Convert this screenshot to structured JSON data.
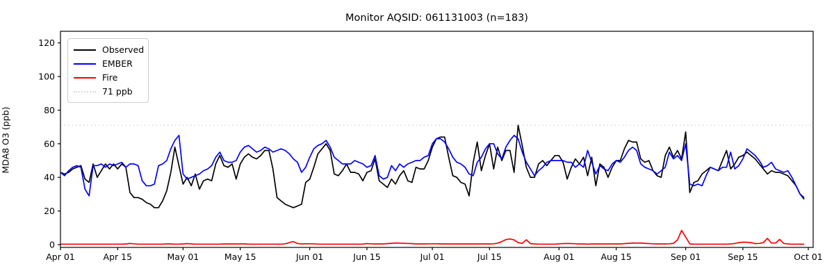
{
  "title": "Monitor AQSID: 061131003 (n=183)",
  "colors": {
    "observed": "#000000",
    "ember": "#0000ff",
    "fire": "#ff0000",
    "threshold_line": "#d9d9d9",
    "axis": "#000000",
    "legend_border": "#cccccc",
    "background": "#ffffff"
  },
  "legend": {
    "items": [
      {
        "label": "Observed",
        "style": "solid",
        "color": "#000000"
      },
      {
        "label": "EMBER",
        "style": "solid",
        "color": "#0000ff"
      },
      {
        "label": "Fire",
        "style": "solid",
        "color": "#ff0000"
      },
      {
        "label": "71 ppb",
        "style": "dotted",
        "color": "#d9d9d9"
      }
    ]
  },
  "chart_data": {
    "type": "line",
    "title": "Monitor AQSID: 061131003 (n=183)",
    "xlabel": "",
    "ylabel": "MDA8 O3 (ppb)",
    "ylim": [
      0,
      120
    ],
    "y_ticks": [
      0,
      20,
      40,
      60,
      80,
      100,
      120
    ],
    "x_tick_labels": [
      "Apr 01",
      "Apr 15",
      "May 01",
      "May 15",
      "Jun 01",
      "Jun 15",
      "Jul 01",
      "Jul 15",
      "Aug 01",
      "Aug 15",
      "Sep 01",
      "Sep 15",
      "Oct 01"
    ],
    "x_tick_days": [
      0,
      14,
      30,
      44,
      61,
      75,
      91,
      105,
      122,
      136,
      153,
      167,
      183
    ],
    "x_range_days": [
      0,
      184
    ],
    "n_points": 183,
    "grid": false,
    "legend_position": "upper left",
    "threshold": {
      "value": 71,
      "label": "71 ppb"
    },
    "series": [
      {
        "name": "Observed",
        "color": "#000000",
        "values": [
          43,
          42,
          43,
          45,
          46,
          47,
          39,
          37,
          48,
          40,
          44,
          48,
          45,
          48,
          45,
          48,
          46,
          31,
          28,
          28,
          27,
          25,
          24,
          22,
          22,
          26,
          32,
          43,
          58,
          47,
          36,
          40,
          35,
          42,
          33,
          38,
          39,
          38,
          48,
          53,
          47,
          46,
          48,
          39,
          48,
          52,
          54,
          52,
          51,
          53,
          56,
          56,
          45,
          28,
          26,
          24,
          23,
          22,
          23,
          24,
          37,
          39,
          46,
          54,
          57,
          60,
          56,
          42,
          41,
          44,
          48,
          43,
          43,
          42,
          38,
          43,
          44,
          51,
          38,
          36,
          34,
          39,
          36,
          41,
          44,
          38,
          37,
          46,
          45,
          45,
          50,
          58,
          63,
          64,
          64,
          52,
          41,
          40,
          37,
          36,
          29,
          49,
          61,
          44,
          53,
          60,
          45,
          58,
          50,
          56,
          56,
          43,
          71,
          59,
          46,
          40,
          40,
          48,
          50,
          47,
          50,
          53,
          53,
          49,
          39,
          46,
          51,
          48,
          52,
          41,
          52,
          35,
          48,
          46,
          40,
          46,
          50,
          50,
          57,
          62,
          61,
          61,
          51,
          49,
          50,
          44,
          41,
          40,
          53,
          58,
          52,
          56,
          51,
          67,
          31,
          37,
          38,
          42,
          44,
          46,
          45,
          44,
          50,
          56,
          45,
          48,
          52,
          53,
          55,
          53,
          51,
          48,
          45,
          42,
          44,
          43,
          43,
          42,
          41,
          38,
          35,
          30,
          27
        ]
      },
      {
        "name": "EMBER",
        "color": "#0000ff",
        "values": [
          43,
          41,
          44,
          46,
          47,
          46,
          33,
          29,
          47,
          47,
          48,
          46,
          48,
          47,
          48,
          49,
          46,
          48,
          48,
          47,
          38,
          35,
          35,
          36,
          47,
          48,
          50,
          57,
          62,
          65,
          42,
          39,
          40,
          41,
          42,
          44,
          45,
          47,
          52,
          55,
          50,
          49,
          49,
          50,
          55,
          58,
          59,
          57,
          55,
          56,
          58,
          57,
          55,
          56,
          57,
          56,
          54,
          51,
          49,
          43,
          46,
          52,
          57,
          59,
          60,
          62,
          58,
          52,
          50,
          48,
          48,
          48,
          50,
          49,
          48,
          46,
          47,
          53,
          41,
          39,
          40,
          47,
          44,
          48,
          46,
          48,
          49,
          50,
          50,
          52,
          53,
          60,
          63,
          63,
          61,
          57,
          52,
          49,
          48,
          46,
          42,
          41,
          49,
          52,
          57,
          60,
          60,
          54,
          51,
          58,
          62,
          65,
          63,
          55,
          49,
          45,
          41,
          44,
          46,
          49,
          50,
          50,
          50,
          50,
          49,
          49,
          46,
          48,
          46,
          56,
          49,
          42,
          47,
          45,
          44,
          48,
          50,
          49,
          52,
          56,
          58,
          56,
          48,
          46,
          45,
          44,
          42,
          44,
          46,
          55,
          51,
          53,
          50,
          60,
          36,
          35,
          36,
          35,
          41,
          46,
          45,
          44,
          46,
          46,
          55,
          45,
          47,
          51,
          57,
          55,
          53,
          50,
          46,
          47,
          49,
          45,
          44,
          43,
          44,
          40,
          35,
          30,
          28
        ]
      },
      {
        "name": "Fire",
        "color": "#ff0000",
        "values": [
          0.3,
          0.3,
          0.3,
          0.3,
          0.3,
          0.3,
          0.3,
          0.3,
          0.3,
          0.3,
          0.3,
          0.3,
          0.3,
          0.3,
          0.3,
          0.3,
          0.4,
          0.7,
          0.5,
          0.3,
          0.3,
          0.3,
          0.3,
          0.3,
          0.3,
          0.3,
          0.4,
          0.4,
          0.3,
          0.3,
          0.4,
          0.6,
          0.4,
          0.3,
          0.3,
          0.3,
          0.3,
          0.3,
          0.3,
          0.3,
          0.4,
          0.4,
          0.4,
          0.4,
          0.4,
          0.4,
          0.3,
          0.3,
          0.3,
          0.3,
          0.3,
          0.3,
          0.3,
          0.3,
          0.3,
          0.5,
          1.2,
          1.8,
          0.7,
          0.4,
          0.5,
          0.5,
          0.5,
          0.3,
          0.3,
          0.3,
          0.3,
          0.3,
          0.3,
          0.3,
          0.3,
          0.3,
          0.3,
          0.3,
          0.3,
          0.6,
          0.5,
          0.4,
          0.4,
          0.4,
          0.6,
          0.8,
          1.0,
          0.9,
          0.8,
          0.7,
          0.6,
          0.4,
          0.4,
          0.4,
          0.5,
          0.5,
          0.5,
          0.4,
          0.4,
          0.4,
          0.4,
          0.4,
          0.4,
          0.4,
          0.4,
          0.4,
          0.4,
          0.4,
          0.4,
          0.4,
          0.5,
          0.9,
          1.8,
          3.0,
          3.4,
          2.8,
          1.2,
          0.8,
          2.9,
          0.6,
          0.4,
          0.3,
          0.3,
          0.3,
          0.3,
          0.3,
          0.5,
          0.6,
          0.7,
          0.6,
          0.5,
          0.4,
          0.4,
          0.3,
          0.4,
          0.4,
          0.4,
          0.4,
          0.4,
          0.4,
          0.4,
          0.4,
          0.6,
          0.8,
          1.0,
          0.9,
          1.0,
          0.8,
          0.6,
          0.5,
          0.4,
          0.4,
          0.4,
          0.5,
          0.8,
          2.8,
          8.5,
          4.5,
          0.4,
          0.3,
          0.3,
          0.3,
          0.3,
          0.3,
          0.3,
          0.3,
          0.3,
          0.3,
          0.4,
          0.7,
          1.2,
          1.5,
          1.4,
          1.2,
          0.6,
          0.7,
          1.2,
          3.7,
          0.9,
          1.0,
          3.1,
          0.7,
          0.4,
          0.3,
          0.3,
          0.3,
          0.2
        ]
      }
    ]
  }
}
